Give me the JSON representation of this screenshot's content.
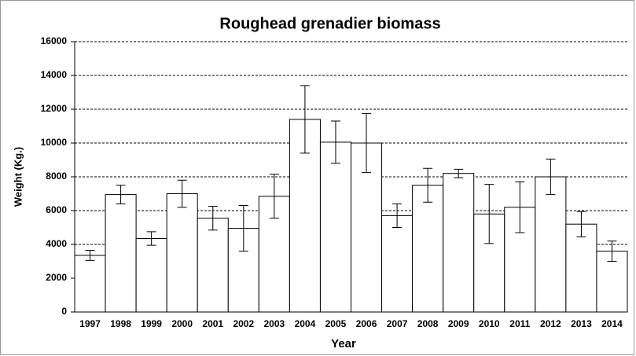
{
  "chart_data": {
    "type": "bar",
    "title": "Roughead grenadier biomass",
    "x_label": "Year",
    "y_label": "Weight (Kg.)",
    "categories": [
      "1997",
      "1998",
      "1999",
      "2000",
      "2001",
      "2002",
      "2003",
      "2004",
      "2005",
      "2006",
      "2007",
      "2008",
      "2009",
      "2010",
      "2011",
      "2012",
      "2013",
      "2014"
    ],
    "values": [
      3350,
      6950,
      4350,
      7000,
      5550,
      4950,
      6850,
      11400,
      10050,
      10000,
      5700,
      7500,
      8200,
      5800,
      6200,
      8000,
      5200,
      3600
    ],
    "errors": [
      300,
      550,
      400,
      800,
      700,
      1350,
      1300,
      2000,
      1250,
      1750,
      700,
      1000,
      250,
      1750,
      1500,
      1050,
      750,
      600
    ],
    "color": "#ffffff",
    "ylim": [
      0,
      16000
    ],
    "yticks": [
      0,
      2000,
      4000,
      6000,
      8000,
      10000,
      12000,
      14000,
      16000
    ],
    "grid": true
  }
}
